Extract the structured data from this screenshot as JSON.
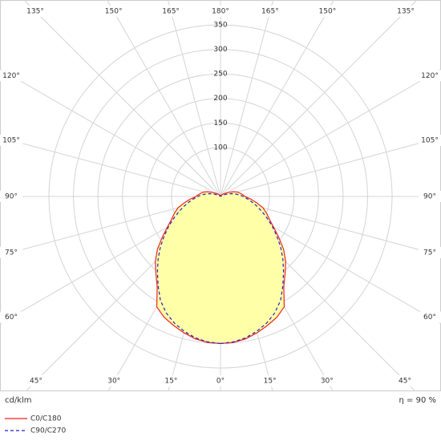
{
  "chart_data": {
    "type": "polar",
    "unit_label": "cd/klm",
    "efficiency_label": "η = 90 %",
    "x": [
      0,
      5,
      10,
      15,
      20,
      25,
      30,
      35,
      40,
      45,
      50,
      55,
      60,
      65,
      70,
      75,
      80,
      85,
      90,
      95,
      100,
      105,
      110,
      115,
      120,
      125,
      130,
      135,
      140,
      145,
      150,
      155,
      160,
      165,
      170,
      175,
      180
    ],
    "series": [
      {
        "name": "C0/C180",
        "color": "#ee2222",
        "dashed": false,
        "values": [
          300,
          299,
          295,
          288,
          280,
          272,
          260,
          225,
          205,
          188,
          168,
          145,
          125,
          110,
          100,
          90,
          75,
          62,
          50,
          45,
          40,
          35,
          28,
          20,
          15,
          10,
          8,
          6,
          5,
          4,
          3,
          2,
          2,
          1,
          1,
          1,
          0
        ]
      },
      {
        "name": "C90/C270",
        "color": "#2222cc",
        "dashed": true,
        "values": [
          300,
          298,
          293,
          285,
          275,
          262,
          245,
          222,
          200,
          180,
          160,
          140,
          122,
          105,
          90,
          77,
          65,
          55,
          46,
          38,
          30,
          22,
          14,
          8,
          4,
          2,
          1,
          0,
          0,
          0,
          0,
          0,
          0,
          0,
          0,
          0,
          0
        ]
      }
    ],
    "fill": "#ffffa8",
    "rlim": [
      0,
      350
    ],
    "rticks": [
      100,
      150,
      200,
      250,
      300,
      350
    ],
    "angle_ticks": [
      {
        "value": 0,
        "label": "0°"
      },
      {
        "value": 15,
        "label": "15°"
      },
      {
        "value": 30,
        "label": "30°"
      },
      {
        "value": 45,
        "label": "45°"
      },
      {
        "value": 60,
        "label": "60°"
      },
      {
        "value": 75,
        "label": "75°"
      },
      {
        "value": 90,
        "label": "90°"
      },
      {
        "value": 105,
        "label": "105°"
      },
      {
        "value": 120,
        "label": "120°"
      },
      {
        "value": 135,
        "label": "135°"
      },
      {
        "value": 150,
        "label": "150°"
      },
      {
        "value": 165,
        "label": "165°"
      },
      {
        "value": 180,
        "label": "180°"
      }
    ]
  }
}
